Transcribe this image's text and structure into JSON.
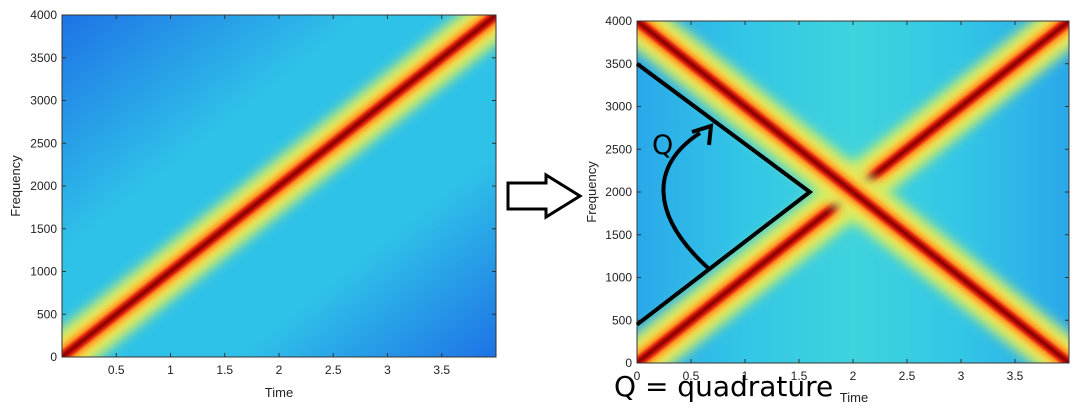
{
  "chart_data": [
    {
      "type": "heatmap",
      "title": "",
      "xlabel": "Time",
      "ylabel": "Frequency",
      "xlim": [
        0,
        4
      ],
      "ylim": [
        0,
        4000
      ],
      "xticks": [
        "0.5",
        "1",
        "1.5",
        "2",
        "2.5",
        "3",
        "3.5"
      ],
      "xtick_values": [
        0.5,
        1,
        1.5,
        2,
        2.5,
        3,
        3.5
      ],
      "yticks": [
        "0",
        "500",
        "1000",
        "1500",
        "2000",
        "2500",
        "3000",
        "3500",
        "4000"
      ],
      "ytick_values": [
        0,
        500,
        1000,
        1500,
        2000,
        2500,
        3000,
        3500,
        4000
      ],
      "ridges": [
        {
          "from": [
            0,
            0
          ],
          "to": [
            4,
            4000
          ]
        }
      ],
      "colormap": "jet",
      "grid": false
    },
    {
      "type": "heatmap",
      "title": "",
      "xlabel": "Time",
      "ylabel": "Frequency",
      "xlim": [
        0,
        4
      ],
      "ylim": [
        0,
        4000
      ],
      "xticks": [
        "0",
        "0.5",
        "1",
        "1.5",
        "2",
        "2.5",
        "3",
        "3.5"
      ],
      "xtick_values": [
        0,
        0.5,
        1,
        1.5,
        2,
        2.5,
        3,
        3.5
      ],
      "yticks": [
        "0",
        "500",
        "1000",
        "1500",
        "2000",
        "2500",
        "3000",
        "3500",
        "4000"
      ],
      "ytick_values": [
        0,
        500,
        1000,
        1500,
        2000,
        2500,
        3000,
        3500,
        4000
      ],
      "ridges": [
        {
          "from": [
            0,
            0
          ],
          "to": [
            4,
            4000
          ]
        },
        {
          "from": [
            0,
            4000
          ],
          "to": [
            4,
            0
          ]
        }
      ],
      "colormap": "jet",
      "grid": false,
      "annotations": {
        "wedge": [
          [
            0,
            3500
          ],
          [
            1.6,
            2000
          ],
          [
            0,
            450
          ]
        ],
        "arc_label": "Q"
      }
    }
  ],
  "caption": "Q = quadrature"
}
